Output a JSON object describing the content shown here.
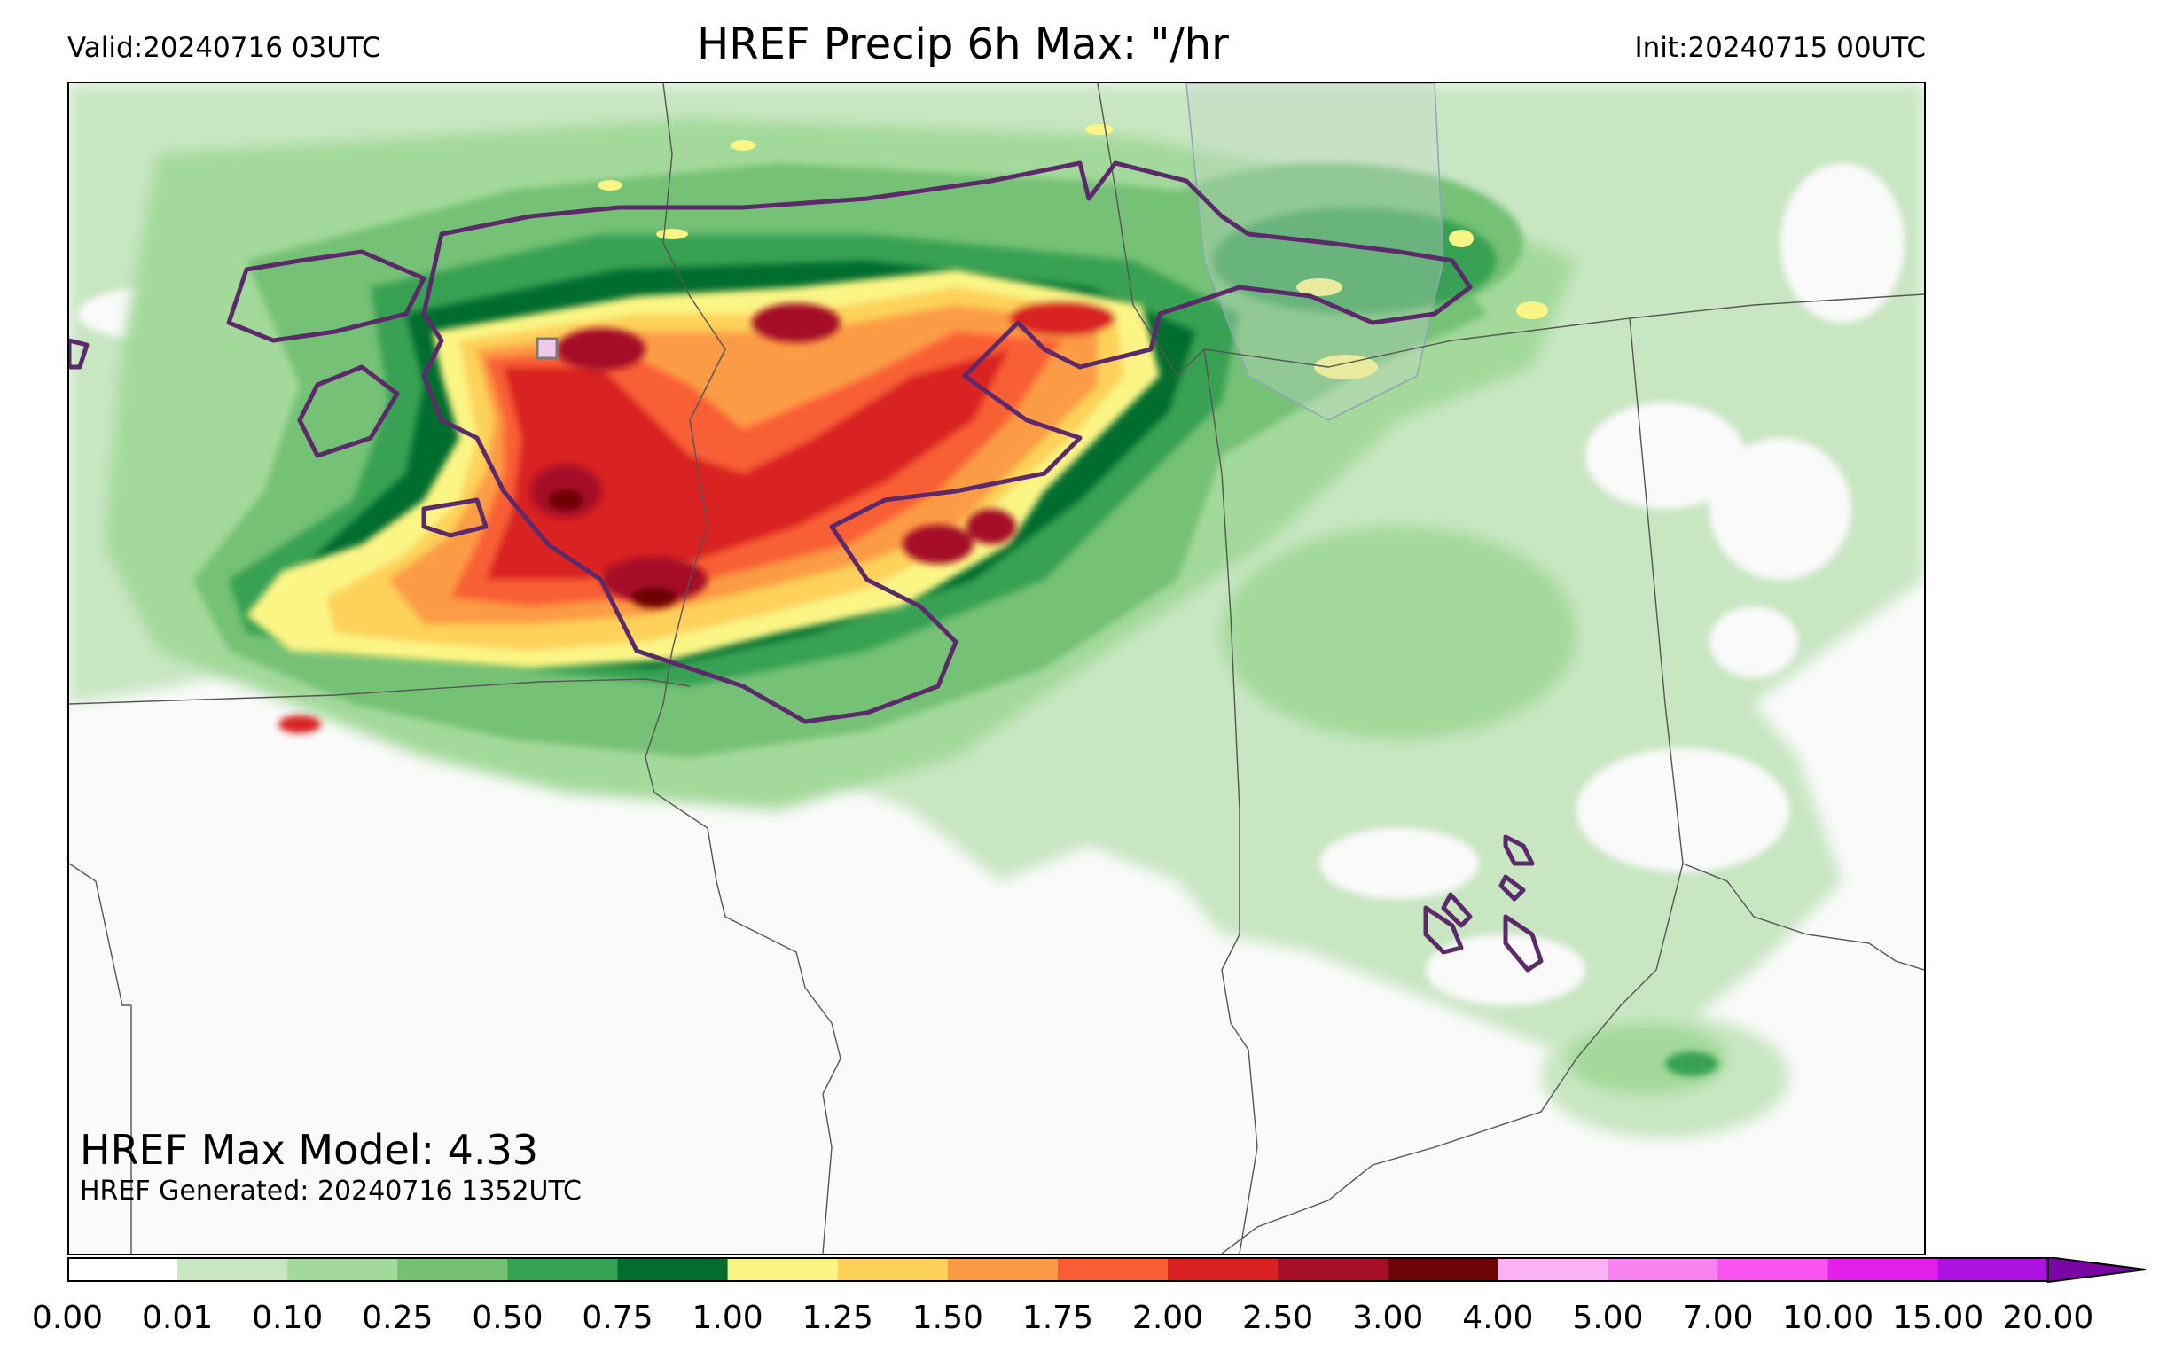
{
  "header": {
    "valid": "Valid:20240716 03UTC",
    "title": "HREF Precip 6h Max: \"/hr",
    "init": "Init:20240715 00UTC"
  },
  "map": {
    "max_model": "HREF Max Model: 4.33",
    "generated": "HREF Generated: 20240716 1352UTC",
    "colors": {
      "background": "#fafafa",
      "contour": "#5c2a6b",
      "border": "#555555"
    }
  },
  "colorbar": {
    "labels": [
      "0.00",
      "0.01",
      "0.10",
      "0.25",
      "0.50",
      "0.75",
      "1.00",
      "1.25",
      "1.50",
      "1.75",
      "2.00",
      "2.50",
      "3.00",
      "4.00",
      "5.00",
      "7.00",
      "10.00",
      "15.00",
      "20.00"
    ],
    "colors": [
      "#ffffff",
      "#c8e6c2",
      "#a3d99a",
      "#74c176",
      "#37a152",
      "#046c2d",
      "#fbf585",
      "#fdd15a",
      "#fc9b45",
      "#f95e36",
      "#d92121",
      "#a50f27",
      "#6d0506",
      "#fbb2f4",
      "#f783f1",
      "#f953ee",
      "#e31fec",
      "#ad12e0",
      "#7906a5"
    ],
    "extend": "max"
  }
}
